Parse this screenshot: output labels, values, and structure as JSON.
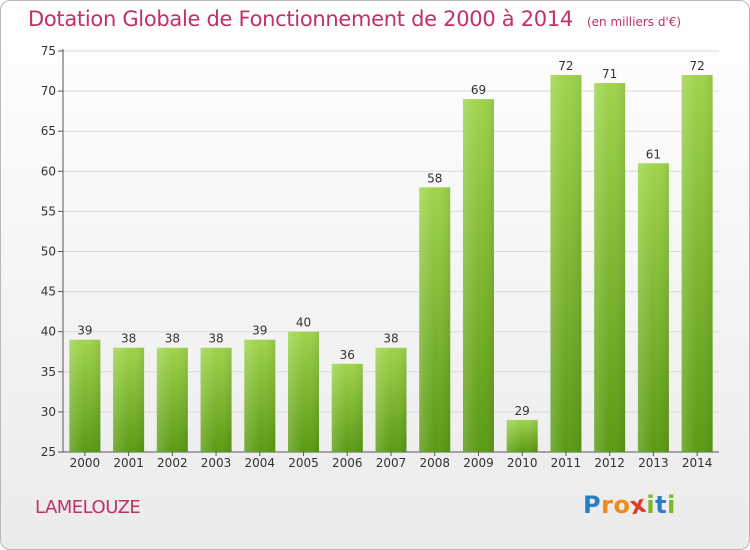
{
  "title": "Dotation Globale de Fonctionnement de 2000 à 2014",
  "unit_note": "(en milliers d'€)",
  "commune": "LAMELOUZE",
  "logo": {
    "letters": [
      "P",
      "r",
      "o",
      "x",
      "i",
      "t",
      "i"
    ],
    "colors": [
      "#2a7fc4",
      "#f08a1c",
      "#f08a1c",
      "#e03a2a",
      "#7ab828",
      "#2a7fc4",
      "#7ab828"
    ]
  },
  "colors": {
    "title": "#c0306a",
    "bar_light": "#9fd44c",
    "bar_dark": "#5b9a14",
    "grid": "#d9d9d9"
  },
  "chart_data": {
    "type": "bar",
    "title": "Dotation Globale de Fonctionnement de 2000 à 2014",
    "subtitle": "(en milliers d'€)",
    "categories": [
      "2000",
      "2001",
      "2002",
      "2003",
      "2004",
      "2005",
      "2006",
      "2007",
      "2008",
      "2009",
      "2010",
      "2011",
      "2012",
      "2013",
      "2014"
    ],
    "values": [
      39,
      38,
      38,
      38,
      39,
      40,
      36,
      38,
      58,
      69,
      29,
      72,
      71,
      61,
      72
    ],
    "ylim": [
      25,
      75
    ],
    "yticks": [
      25,
      30,
      35,
      40,
      45,
      50,
      55,
      60,
      65,
      70,
      75
    ],
    "grid": true,
    "data_labels": true
  }
}
